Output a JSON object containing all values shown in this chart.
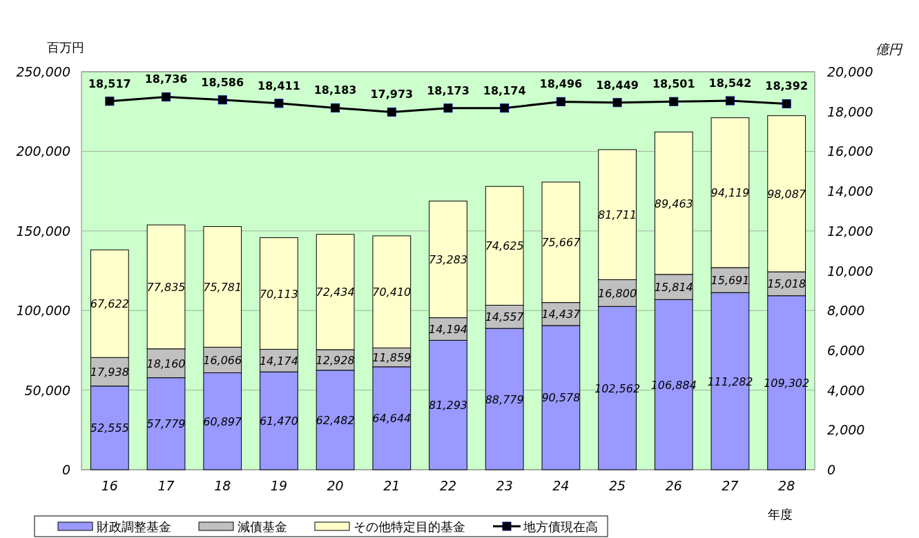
{
  "chart_data": {
    "type": "bar",
    "stacked": true,
    "ylabel": "百万円",
    "y2label": "億円",
    "xlabel": "年度",
    "legend": "bottom",
    "grid": "y",
    "marker": "square",
    "categories": [
      "16",
      "17",
      "18",
      "19",
      "20",
      "21",
      "22",
      "23",
      "24",
      "25",
      "26",
      "27",
      "28"
    ],
    "ylim": [
      0,
      250000
    ],
    "yticks": [
      0,
      {
        "value": 50000,
        "label": "50,000"
      },
      {
        "value": 100000,
        "label": "100,000"
      },
      {
        "value": 150000,
        "label": "150,000"
      },
      {
        "value": 200000,
        "label": "200,000"
      },
      {
        "value": 250000,
        "label": "250,000"
      }
    ],
    "y2lim": [
      0,
      20000
    ],
    "y2ticks": [
      0,
      {
        "value": 2000,
        "label": "2,000"
      },
      {
        "value": 4000,
        "label": "4,000"
      },
      {
        "value": 6000,
        "label": "6,000"
      },
      {
        "value": 8000,
        "label": "8,000"
      },
      {
        "value": 10000,
        "label": "10,000"
      },
      {
        "value": 12000,
        "label": "12,000"
      },
      {
        "value": 14000,
        "label": "14,000"
      },
      {
        "value": 16000,
        "label": "16,000"
      },
      {
        "value": 18000,
        "label": "18,000"
      },
      {
        "value": 20000,
        "label": "20,000"
      }
    ],
    "series": [
      {
        "name": "財政調整基金",
        "color": "#9999ff",
        "values": [
          52555,
          57779,
          60897,
          61470,
          62482,
          64644,
          81293,
          88779,
          90578,
          102562,
          106884,
          111282,
          109302
        ],
        "value_labels": [
          "52,555",
          "57,779",
          "60,897",
          "61,470",
          "62,482",
          "64,644",
          "81,293",
          "88,779",
          "90,578",
          "102,562",
          "106,884",
          "111,282",
          "109,302"
        ]
      },
      {
        "name": "減債基金",
        "color": "#c0c0c0",
        "values": [
          17938,
          18160,
          16066,
          14174,
          12928,
          11859,
          14194,
          14557,
          14437,
          16800,
          15814,
          15691,
          15018
        ],
        "value_labels": [
          "17,938",
          "18,160",
          "16,066",
          "14,174",
          "12,928",
          "11,859",
          "14,194",
          "14,557",
          "14,437",
          "16,800",
          "15,814",
          "15,691",
          "15,018"
        ]
      },
      {
        "name": "その他特定目的基金",
        "color": "#ffffcc",
        "values": [
          67622,
          77835,
          75781,
          70113,
          72434,
          70410,
          73283,
          74625,
          75667,
          81711,
          89463,
          94119,
          98087
        ],
        "value_labels": [
          "67,622",
          "77,835",
          "75,781",
          "70,113",
          "72,434",
          "70,410",
          "73,283",
          "74,625",
          "75,667",
          "81,711",
          "89,463",
          "94,119",
          "98,087"
        ]
      },
      {
        "name": "地方債現在高",
        "type": "line",
        "axis": "y2",
        "color": "#000000",
        "values": [
          18517,
          18736,
          18586,
          18411,
          18183,
          17973,
          18173,
          18174,
          18496,
          18449,
          18501,
          18542,
          18392
        ],
        "value_labels": [
          "18,517",
          "18,736",
          "18,586",
          "18,411",
          "18,183",
          "17,973",
          "18,173",
          "18,174",
          "18,496",
          "18,449",
          "18,501",
          "18,542",
          "18,392"
        ]
      }
    ]
  }
}
